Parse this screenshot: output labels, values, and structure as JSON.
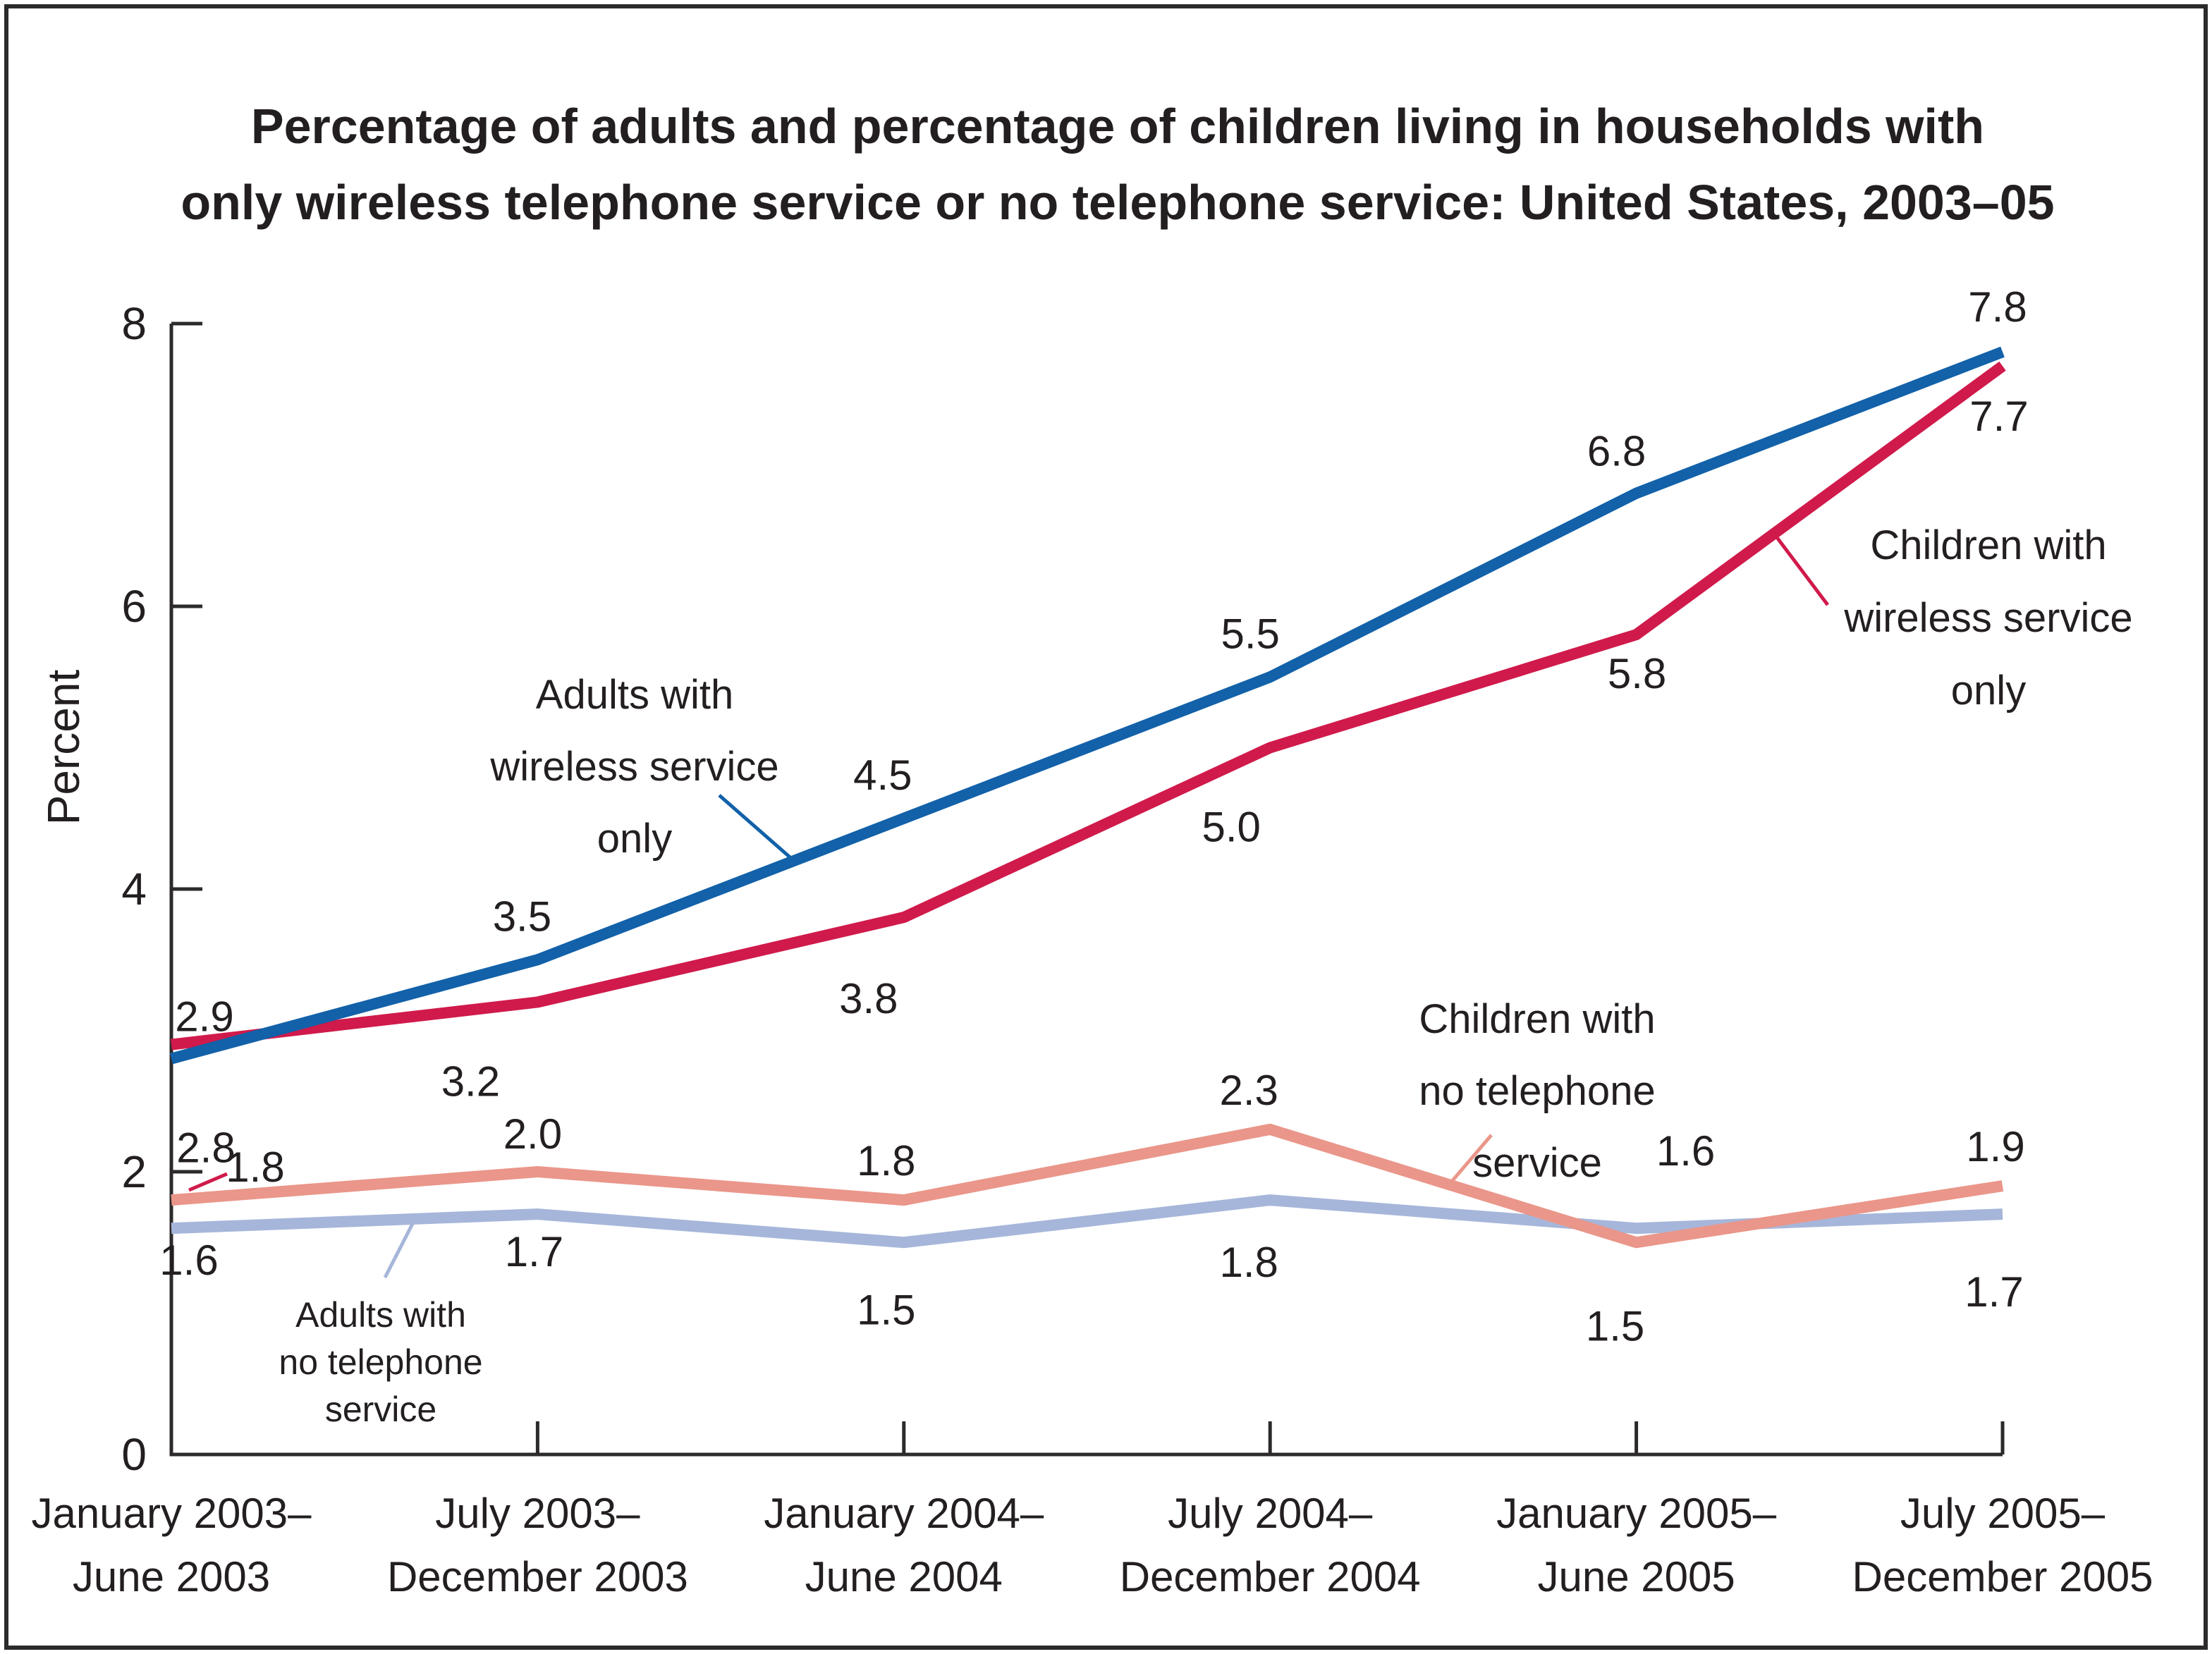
{
  "figure": {
    "title_line1": "Percentage of adults and percentage of children living in households with",
    "title_line2": "only wireless telephone service or no telephone service: United States, 2003–05"
  },
  "chart_data": {
    "type": "line",
    "title": "Percentage of adults and percentage of children living in households with only wireless telephone service or no telephone service: United States, 2003–05",
    "ylabel": "Percent",
    "xlabel": "",
    "ylim": [
      0,
      8
    ],
    "yticks": [
      0,
      2,
      4,
      6,
      8
    ],
    "grid": false,
    "legend_position": "inline-annotations-with-leader-lines",
    "x_categories": [
      [
        "January 2003–",
        "June 2003"
      ],
      [
        "July 2003–",
        "December 2003"
      ],
      [
        "January 2004–",
        "June 2004"
      ],
      [
        "July 2004–",
        "December 2004"
      ],
      [
        "January 2005–",
        "June 2005"
      ],
      [
        "July 2005–",
        "December 2005"
      ]
    ],
    "series": [
      {
        "id": "adults-wireless",
        "name": "Adults with wireless service only",
        "annotation_lines": [
          "Adults with",
          "wireless service",
          "only"
        ],
        "color": "#1261a9",
        "values": [
          2.8,
          3.5,
          4.5,
          5.5,
          6.8,
          7.8
        ]
      },
      {
        "id": "children-wireless",
        "name": "Children with wireless service only",
        "annotation_lines": [
          "Children with",
          "wireless service",
          "only"
        ],
        "color": "#d01a4b",
        "values": [
          2.9,
          3.2,
          3.8,
          5.0,
          5.8,
          7.7
        ]
      },
      {
        "id": "children-no-phone",
        "name": "Children with no telephone service",
        "annotation_lines": [
          "Children with",
          "no telephone",
          "service"
        ],
        "color": "#ea968a",
        "values": [
          1.8,
          2.0,
          1.8,
          2.3,
          1.5,
          1.9
        ]
      },
      {
        "id": "adults-no-phone",
        "name": "Adults with no telephone service",
        "annotation_lines": [
          "Adults with",
          "no telephone",
          "service"
        ],
        "color": "#a6b6da",
        "values": [
          1.6,
          1.7,
          1.5,
          1.8,
          1.6,
          1.7
        ]
      }
    ],
    "colors": {
      "text": "#231f20",
      "axis": "#2d2a2b",
      "background": "#ffffff"
    }
  }
}
